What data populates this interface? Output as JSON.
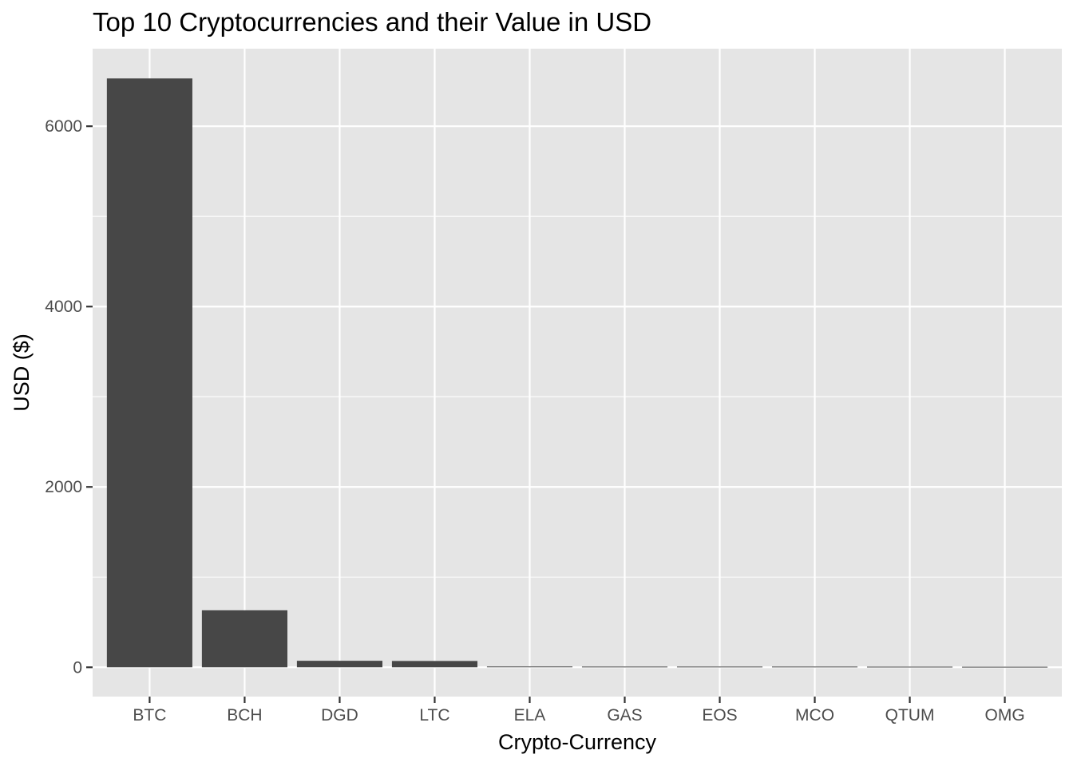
{
  "chart_data": {
    "type": "bar",
    "title": "Top 10 Cryptocurrencies and their Value in USD",
    "xlabel": "Crypto-Currency",
    "ylabel": "USD ($)",
    "categories": [
      "BTC",
      "BCH",
      "DGD",
      "LTC",
      "ELA",
      "GAS",
      "EOS",
      "MCO",
      "QTUM",
      "OMG"
    ],
    "values": [
      6530,
      632,
      72,
      70,
      9,
      8,
      8,
      8,
      7,
      6
    ],
    "ylim": [
      -325,
      6860
    ],
    "yticks": [
      0,
      2000,
      4000,
      6000
    ],
    "ytick_labels": [
      "0",
      "2000",
      "4000",
      "6000"
    ],
    "grid": true,
    "legend": "none",
    "colors": {
      "panel": "#e5e5e5",
      "bar": "#474747",
      "grid": "#ffffff"
    }
  }
}
